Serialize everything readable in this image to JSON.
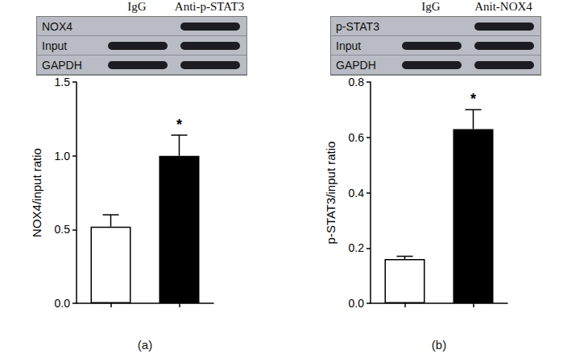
{
  "chart_data": [
    {
      "type": "bar",
      "panel_label": "(a)",
      "blot": {
        "lanes": [
          "IgG",
          "Anti-p-STAT3"
        ],
        "rows": [
          "NOX4",
          "Input",
          "GAPDH"
        ],
        "bands": [
          [
            false,
            true
          ],
          [
            true,
            true
          ],
          [
            true,
            true
          ]
        ]
      },
      "categories": [
        null,
        null
      ],
      "values": [
        0.52,
        1.0
      ],
      "errors": [
        0.08,
        0.14
      ],
      "colors": [
        "#ffffff",
        "#000000"
      ],
      "y_label": "NOX4/input ratio",
      "ylim": [
        0,
        1.5
      ],
      "yticks": [
        {
          "value": 0,
          "label": "0.0"
        },
        0.5,
        {
          "value": 1,
          "label": "1.0"
        },
        1.5
      ],
      "grid": false,
      "annotations": [
        {
          "text": "*",
          "index": 1
        }
      ]
    },
    {
      "type": "bar",
      "panel_label": "(b)",
      "blot": {
        "lanes": [
          "IgG",
          "Anit-NOX4"
        ],
        "rows": [
          "p-STAT3",
          "Input",
          "GAPDH"
        ],
        "bands": [
          [
            false,
            true
          ],
          [
            true,
            true
          ],
          [
            true,
            true
          ]
        ]
      },
      "categories": [
        null,
        null
      ],
      "values": [
        0.16,
        0.63
      ],
      "errors": [
        0.01,
        0.07
      ],
      "colors": [
        "#ffffff",
        "#000000"
      ],
      "y_label": "p-STAT3/input ratio",
      "ylim": [
        0,
        0.8
      ],
      "yticks": [
        {
          "value": 0,
          "label": "0.0"
        },
        0.2,
        0.4,
        0.6,
        0.8
      ],
      "grid": false,
      "annotations": [
        {
          "text": "*",
          "index": 1
        }
      ]
    }
  ]
}
